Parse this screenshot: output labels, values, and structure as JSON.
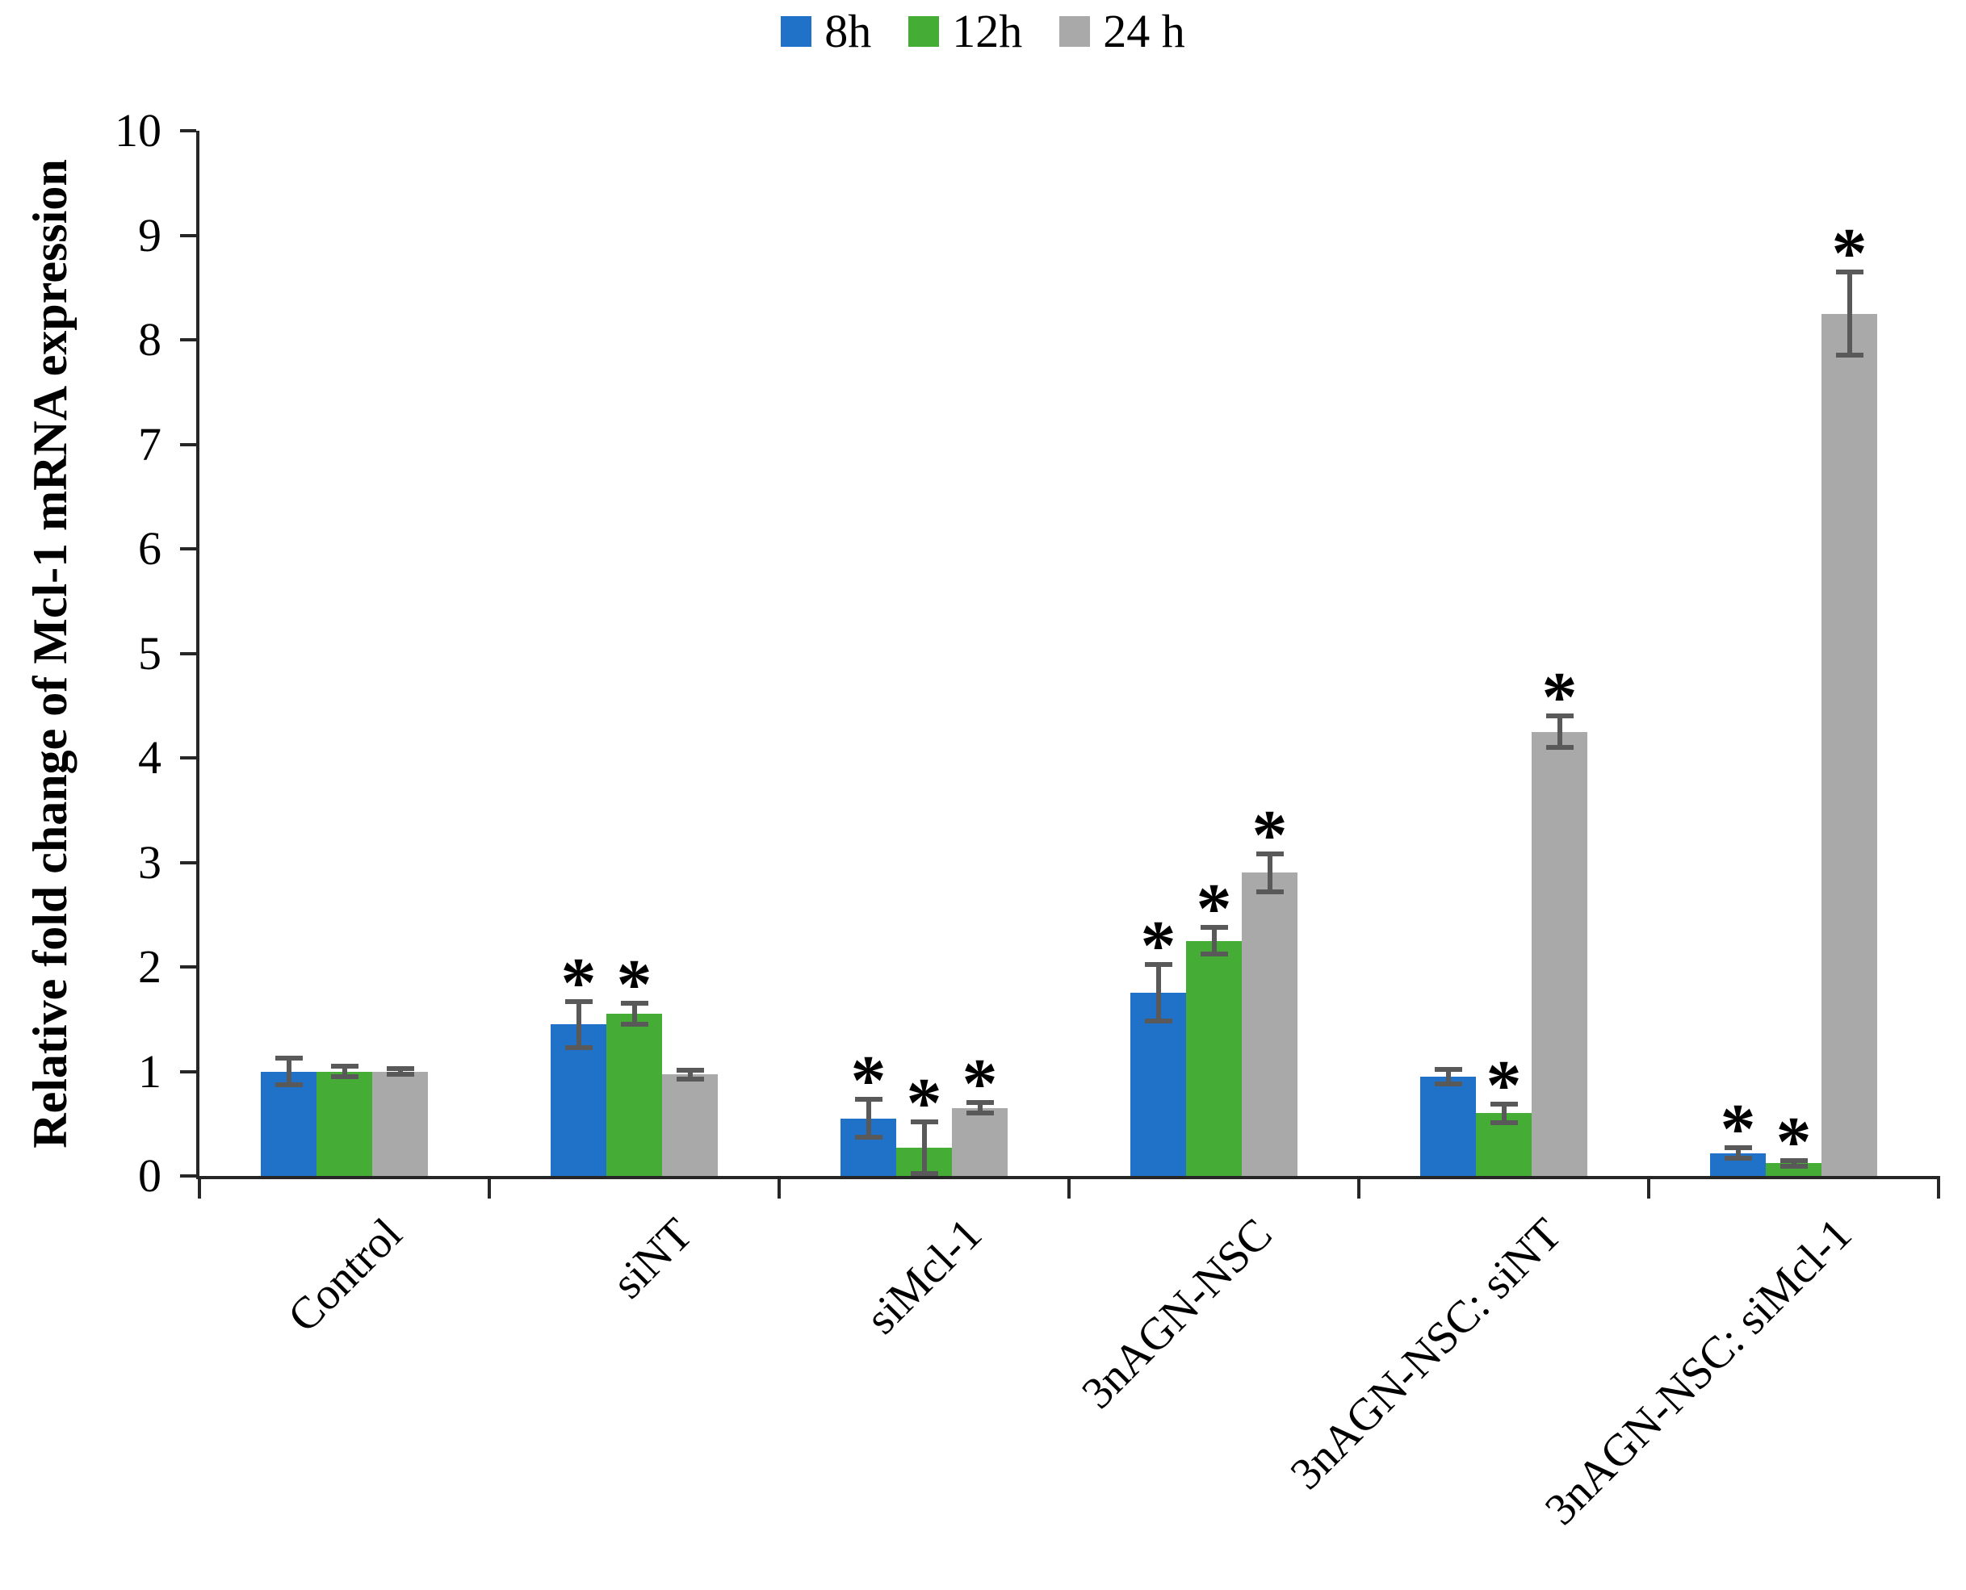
{
  "figure": {
    "significance_marker": "*"
  },
  "chart_data": {
    "type": "bar",
    "title": "",
    "xlabel": "",
    "ylabel": "Relative fold change of Mcl-1 mRNA expression",
    "ylim": [
      0,
      10
    ],
    "yticks": [
      0,
      1,
      2,
      3,
      4,
      5,
      6,
      7,
      8,
      9,
      10
    ],
    "grid": false,
    "legend_position": "top-center",
    "categories": [
      "Control",
      "siNT",
      "siMcl-1",
      "3nAGN-NSC",
      "3nAGN-NSC: siNT",
      "3nAGN-NSC: siMcl-1"
    ],
    "series": [
      {
        "name": "8h",
        "color": "#1F72C8",
        "values": [
          1.0,
          1.45,
          0.55,
          1.75,
          0.95,
          0.22
        ],
        "errors": [
          0.13,
          0.22,
          0.18,
          0.27,
          0.07,
          0.05
        ],
        "significant": [
          false,
          true,
          true,
          true,
          false,
          true
        ]
      },
      {
        "name": "12h",
        "color": "#45AD35",
        "values": [
          1.0,
          1.55,
          0.27,
          2.25,
          0.6,
          0.12
        ],
        "errors": [
          0.05,
          0.1,
          0.25,
          0.13,
          0.09,
          0.03
        ],
        "significant": [
          false,
          true,
          true,
          true,
          true,
          true
        ]
      },
      {
        "name": "24 h",
        "color": "#A9A9A9",
        "values": [
          1.0,
          0.97,
          0.65,
          2.9,
          4.25,
          8.25
        ],
        "errors": [
          0.03,
          0.04,
          0.05,
          0.18,
          0.15,
          0.4
        ],
        "significant": [
          false,
          false,
          true,
          true,
          true,
          true
        ]
      }
    ],
    "colors": {
      "axis": "#262626",
      "error_bar": "#595959",
      "asterisk": "#000000"
    }
  }
}
